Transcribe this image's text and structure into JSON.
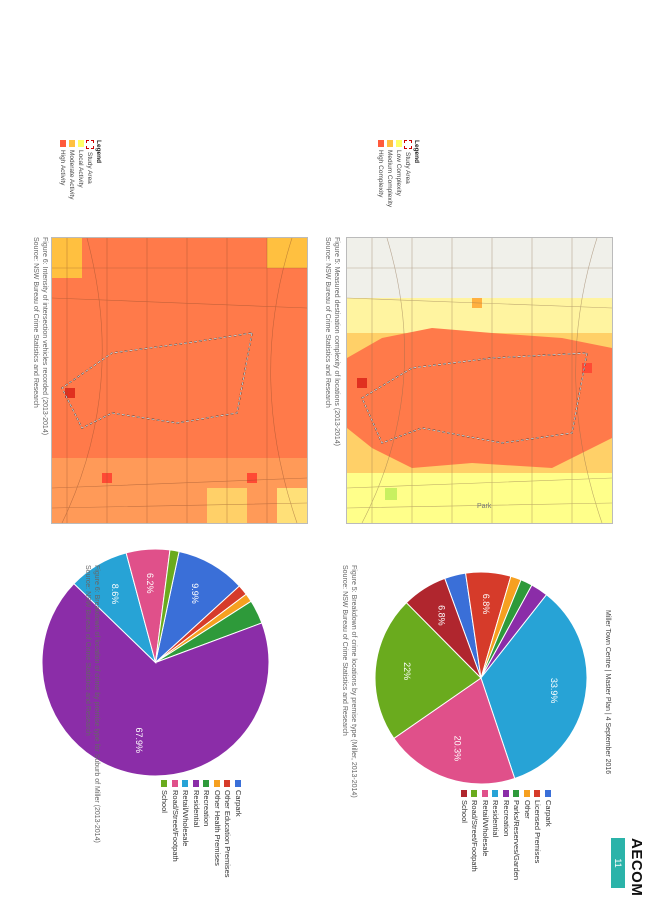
{
  "footer": {
    "text": "Miller Town Centre | Master Plan | 4 September 2016",
    "logo": "AECOM",
    "page_number": "11"
  },
  "legend_top": {
    "title": "Legend",
    "items": [
      {
        "label": "Study Area",
        "color": "#ffffff"
      },
      {
        "label": "Low Complexity",
        "color": "#ffff66"
      },
      {
        "label": "Medium Complexity",
        "color": "#ffc040"
      },
      {
        "label": "High Complexity",
        "color": "#ff5a3c"
      }
    ]
  },
  "legend_bottom": {
    "title": "Legend",
    "items": [
      {
        "label": "Study Area",
        "color": "#ffffff"
      },
      {
        "label": "Local Activity",
        "color": "#ffff66"
      },
      {
        "label": "Moderate Activity",
        "color": "#ffc040"
      },
      {
        "label": "High Activity",
        "color": "#ff5a3c"
      }
    ]
  },
  "captions": {
    "map_top": [
      "Figure 5: Measured destination complexity of locations (2013-2014)",
      "Source: NSW Bureau of Crime Statistics and Research"
    ],
    "map_bottom": [
      "Figure 6: Intensity of intersection vehicles recorded (2013-2014)",
      "Source: NSW Bureau of Crime Statistics and Research"
    ],
    "pie_top": [
      "Figure 5: Breakdown of crime locations by premise type (Miller, 2013-2014)",
      "Source: NSW Bureau of Crime Statistics and Research"
    ],
    "pie_bottom": [
      "Figure 6: Breakdown of location of crime by premise type for Suburb of Miller (2013-2014)",
      "Source: NSW Bureau of Crime Statistics and Research"
    ]
  },
  "map_labels": {
    "park": "Park"
  },
  "chart_data": [
    {
      "type": "pie",
      "title": "",
      "legend": "right",
      "slices": [
        {
          "label": "Carpark",
          "value": 3.2,
          "color": "#3a6fd8",
          "display": ""
        },
        {
          "label": "Licensed Premises",
          "value": 6.8,
          "color": "#d63b2a",
          "display": "6.8%"
        },
        {
          "label": "Other",
          "value": 1.6,
          "color": "#f6a020",
          "display": ""
        },
        {
          "label": "Parks/Reserves/Garden",
          "value": 1.8,
          "color": "#2e9a3a",
          "display": ""
        },
        {
          "label": "Recreation",
          "value": 2.6,
          "color": "#8b2da8",
          "display": ""
        },
        {
          "label": "Residential",
          "value": 33.9,
          "color": "#27a3d6",
          "display": "33.9%"
        },
        {
          "label": "Retail/Wholesale",
          "value": 20.3,
          "color": "#e0508a",
          "display": "20.3%"
        },
        {
          "label": "Road/Street/Footpath",
          "value": 22.0,
          "color": "#6aab1e",
          "display": "22%"
        },
        {
          "label": "School",
          "value": 6.8,
          "color": "#b0262e",
          "display": "6.8%"
        }
      ]
    },
    {
      "type": "pie",
      "title": "",
      "legend": "right",
      "slices": [
        {
          "label": "Carpark",
          "value": 9.9,
          "color": "#3a6fd8",
          "display": "9.9%"
        },
        {
          "label": "Other Education Premises",
          "value": 1.5,
          "color": "#d63b2a",
          "display": ""
        },
        {
          "label": "Other Health Premises",
          "value": 1.2,
          "color": "#f6a020",
          "display": ""
        },
        {
          "label": "Recreation",
          "value": 3.4,
          "color": "#2e9a3a",
          "display": ""
        },
        {
          "label": "Residential",
          "value": 67.9,
          "color": "#8b2da8",
          "display": "67.9%"
        },
        {
          "label": "Retail/Wholesale",
          "value": 8.6,
          "color": "#27a3d6",
          "display": "8.6%"
        },
        {
          "label": "Road/Street/Footpath",
          "value": 6.2,
          "color": "#e0508a",
          "display": "6.2%"
        },
        {
          "label": "School",
          "value": 1.3,
          "color": "#6aab1e",
          "display": ""
        }
      ]
    }
  ]
}
